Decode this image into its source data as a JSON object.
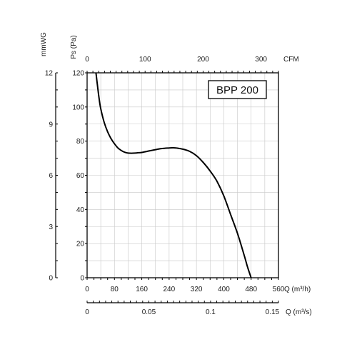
{
  "chart_data": {
    "type": "line",
    "title": "BPP 200",
    "legend": "top-right",
    "grid": true,
    "axes": {
      "primary_y": {
        "label": "Ps (Pa)",
        "ticks": [
          "0",
          "20",
          "40",
          "60",
          "80",
          "100",
          "120"
        ],
        "range": [
          0,
          120
        ]
      },
      "secondary_y": {
        "label": "mmWG",
        "ticks": [
          "0",
          "3",
          "6",
          "9",
          "12"
        ],
        "range": [
          0,
          12
        ]
      },
      "bottom_x": {
        "label": "Q (m³/h)",
        "ticks": [
          "0",
          "80",
          "160",
          "240",
          "320",
          "400",
          "480",
          "560"
        ],
        "range": [
          0,
          560
        ]
      },
      "top_x": {
        "label": "CFM",
        "ticks": [
          "0",
          "100",
          "200",
          "300"
        ],
        "range": [
          0,
          330
        ]
      },
      "bottom_x2": {
        "label": "Q (m³/s)",
        "ticks": [
          "0",
          "0.05",
          "0.1",
          "0.15"
        ],
        "range": [
          0,
          0.155
        ]
      }
    },
    "series": [
      {
        "x": [
          26,
          30,
          35,
          40,
          50,
          60,
          70,
          80,
          90,
          100,
          110,
          120,
          130,
          140,
          150,
          160,
          180,
          200,
          220,
          240,
          250,
          260,
          280,
          300,
          320,
          340,
          360,
          380,
          400,
          420,
          440,
          460,
          470,
          480
        ],
        "y": [
          120,
          113,
          105,
          99,
          91,
          85.5,
          81.5,
          78.5,
          76,
          74.5,
          73.5,
          73,
          72.9,
          73,
          73.2,
          73.4,
          74.2,
          75,
          75.7,
          76,
          76.1,
          76,
          75.3,
          74,
          71.5,
          67.5,
          62.5,
          56.5,
          48,
          37,
          26,
          13,
          6,
          0
        ]
      }
    ]
  }
}
